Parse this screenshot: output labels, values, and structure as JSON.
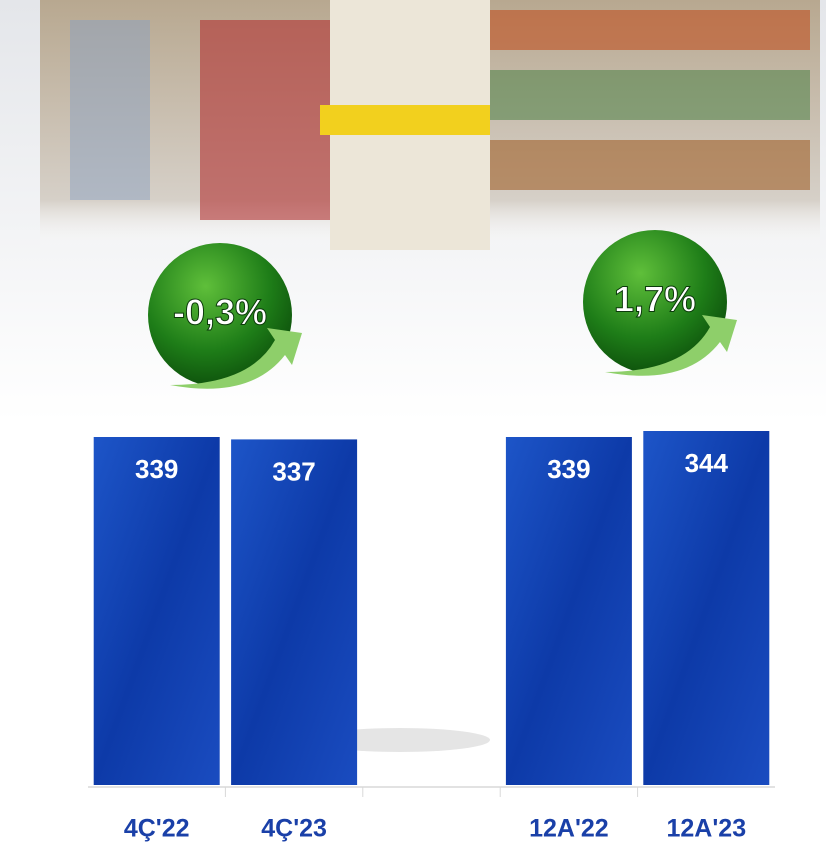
{
  "chart_data": {
    "type": "bar",
    "categories": [
      "4Ç'22",
      "4Ç'23",
      null,
      "12A'22",
      "12A'23"
    ],
    "values": [
      339,
      337,
      null,
      339,
      344
    ],
    "color": "#1546b8",
    "annotations": [
      "-0,3%",
      "1,7%"
    ]
  }
}
